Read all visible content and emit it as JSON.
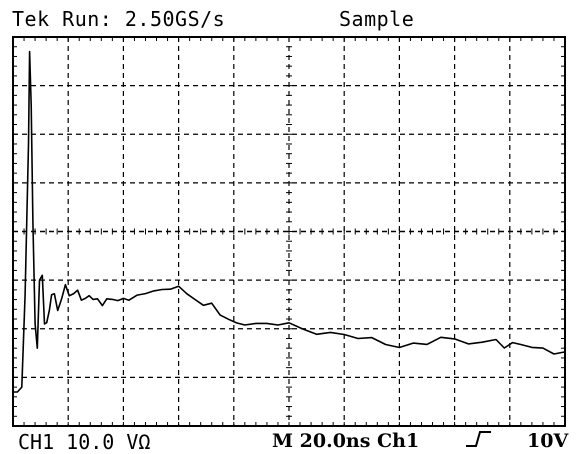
{
  "header": {
    "status": "Tek Run: 2.50GS/s",
    "mode": "Sample"
  },
  "footer": {
    "channel_scale": "CH1 10.0 VΩ",
    "timebase_trigger": "M 20.0ns Ch1",
    "trigger_level": "10V"
  },
  "icons": {
    "trigger_slope": "rising-edge-icon"
  },
  "colors": {
    "trace": "#000000",
    "grid": "#000000",
    "background": "#ffffff"
  },
  "chart_data": {
    "type": "line",
    "grid": true,
    "xlim": [
      0,
      100
    ],
    "ylim": [
      -4,
      4
    ],
    "units": "divisions",
    "series": [
      {
        "x": [
          0,
          0.8,
          1.6,
          2.2,
          2.8,
          3.0,
          3.3,
          3.6,
          4.0,
          4.4,
          4.8,
          5.3,
          5.7,
          6.1,
          6.6,
          7.0,
          7.5,
          8.1,
          8.8,
          9.5,
          10.2,
          11.0,
          11.7,
          12.4,
          13.1,
          13.8,
          14.5,
          15.3,
          16.2,
          17.0,
          18.0,
          19.0,
          20.0,
          21.0,
          22.5,
          24.0,
          25.5,
          27.0,
          28.5,
          30.0,
          31.5,
          33.0,
          34.5,
          36.0,
          37.5,
          39.0,
          40.5,
          42.0,
          44.0,
          46.0,
          48.0,
          50.0,
          52.5,
          55.0,
          57.5,
          60.0,
          62.5,
          65.0,
          67.5,
          70.0,
          72.5,
          75.0,
          77.5,
          80.0,
          82.5,
          85.0,
          87.5,
          89.0,
          90.5,
          92.0,
          94.0,
          96.0,
          98.0,
          100.0
        ],
        "y": [
          -3.3,
          -3.3,
          -3.2,
          -1.3,
          1.8,
          3.7,
          2.6,
          0.2,
          -1.9,
          -2.4,
          -1.0,
          -0.9,
          -1.9,
          -1.9,
          -1.6,
          -1.3,
          -1.3,
          -1.6,
          -1.4,
          -1.1,
          -1.3,
          -1.3,
          -1.2,
          -1.4,
          -1.4,
          -1.3,
          -1.4,
          -1.4,
          -1.5,
          -1.4,
          -1.4,
          -1.4,
          -1.4,
          -1.4,
          -1.3,
          -1.3,
          -1.2,
          -1.2,
          -1.2,
          -1.1,
          -1.3,
          -1.4,
          -1.5,
          -1.5,
          -1.7,
          -1.8,
          -1.9,
          -1.9,
          -1.9,
          -1.9,
          -1.9,
          -1.9,
          -2.0,
          -2.1,
          -2.1,
          -2.1,
          -2.2,
          -2.2,
          -2.3,
          -2.4,
          -2.3,
          -2.3,
          -2.2,
          -2.2,
          -2.3,
          -2.3,
          -2.2,
          -2.4,
          -2.3,
          -2.3,
          -2.4,
          -2.4,
          -2.5,
          -2.5
        ]
      }
    ]
  }
}
